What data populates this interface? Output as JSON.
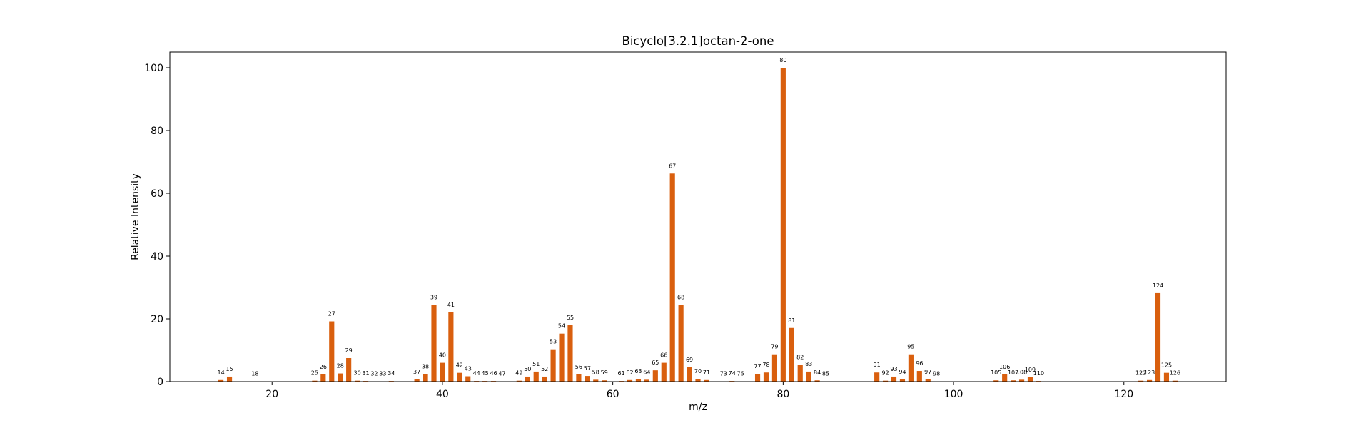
{
  "chart_data": {
    "type": "bar",
    "title": "Bicyclo[3.2.1]octan-2-one",
    "xlabel": "m/z",
    "ylabel": "Relative Intensity",
    "xlim": [
      8,
      132
    ],
    "ylim": [
      0,
      105
    ],
    "xticks": [
      20,
      40,
      60,
      80,
      100,
      120
    ],
    "yticks": [
      0,
      20,
      40,
      60,
      80,
      100
    ],
    "bar_color": "#d95f0e",
    "grid": false,
    "points": [
      {
        "x": 14,
        "y": 0.5
      },
      {
        "x": 15,
        "y": 1.6
      },
      {
        "x": 18,
        "y": 0.1
      },
      {
        "x": 25,
        "y": 0.3
      },
      {
        "x": 26,
        "y": 2.3
      },
      {
        "x": 27,
        "y": 19.2
      },
      {
        "x": 28,
        "y": 2.6
      },
      {
        "x": 29,
        "y": 7.5
      },
      {
        "x": 30,
        "y": 0.3
      },
      {
        "x": 31,
        "y": 0.2
      },
      {
        "x": 32,
        "y": 0.1
      },
      {
        "x": 33,
        "y": 0.1
      },
      {
        "x": 34,
        "y": 0.2
      },
      {
        "x": 37,
        "y": 0.7
      },
      {
        "x": 38,
        "y": 2.4
      },
      {
        "x": 39,
        "y": 24.4
      },
      {
        "x": 40,
        "y": 6.0
      },
      {
        "x": 41,
        "y": 22.1
      },
      {
        "x": 42,
        "y": 2.8
      },
      {
        "x": 43,
        "y": 1.7
      },
      {
        "x": 44,
        "y": 0.2
      },
      {
        "x": 45,
        "y": 0.2
      },
      {
        "x": 46,
        "y": 0.2
      },
      {
        "x": 47,
        "y": 0.1
      },
      {
        "x": 49,
        "y": 0.3
      },
      {
        "x": 50,
        "y": 1.6
      },
      {
        "x": 51,
        "y": 3.2
      },
      {
        "x": 52,
        "y": 1.6
      },
      {
        "x": 53,
        "y": 10.3
      },
      {
        "x": 54,
        "y": 15.3
      },
      {
        "x": 55,
        "y": 18.0
      },
      {
        "x": 56,
        "y": 2.3
      },
      {
        "x": 57,
        "y": 1.8
      },
      {
        "x": 58,
        "y": 0.6
      },
      {
        "x": 59,
        "y": 0.4
      },
      {
        "x": 61,
        "y": 0.2
      },
      {
        "x": 62,
        "y": 0.5
      },
      {
        "x": 63,
        "y": 0.9
      },
      {
        "x": 64,
        "y": 0.6
      },
      {
        "x": 65,
        "y": 3.6
      },
      {
        "x": 66,
        "y": 6.0
      },
      {
        "x": 67,
        "y": 66.3
      },
      {
        "x": 68,
        "y": 24.4
      },
      {
        "x": 69,
        "y": 4.6
      },
      {
        "x": 70,
        "y": 0.9
      },
      {
        "x": 71,
        "y": 0.5
      },
      {
        "x": 73,
        "y": 0.1
      },
      {
        "x": 74,
        "y": 0.2
      },
      {
        "x": 75,
        "y": 0.1
      },
      {
        "x": 77,
        "y": 2.5
      },
      {
        "x": 78,
        "y": 2.9
      },
      {
        "x": 79,
        "y": 8.7
      },
      {
        "x": 80,
        "y": 100.0
      },
      {
        "x": 81,
        "y": 17.1
      },
      {
        "x": 82,
        "y": 5.3
      },
      {
        "x": 83,
        "y": 3.2
      },
      {
        "x": 84,
        "y": 0.4
      },
      {
        "x": 85,
        "y": 0.1
      },
      {
        "x": 91,
        "y": 2.9
      },
      {
        "x": 92,
        "y": 0.3
      },
      {
        "x": 93,
        "y": 1.6
      },
      {
        "x": 94,
        "y": 0.7
      },
      {
        "x": 95,
        "y": 8.7
      },
      {
        "x": 96,
        "y": 3.4
      },
      {
        "x": 97,
        "y": 0.7
      },
      {
        "x": 98,
        "y": 0.1
      },
      {
        "x": 105,
        "y": 0.4
      },
      {
        "x": 106,
        "y": 2.3
      },
      {
        "x": 107,
        "y": 0.4
      },
      {
        "x": 108,
        "y": 0.6
      },
      {
        "x": 109,
        "y": 1.4
      },
      {
        "x": 110,
        "y": 0.2
      },
      {
        "x": 122,
        "y": 0.3
      },
      {
        "x": 123,
        "y": 0.5
      },
      {
        "x": 124,
        "y": 28.2
      },
      {
        "x": 125,
        "y": 2.8
      },
      {
        "x": 126,
        "y": 0.3
      }
    ]
  }
}
